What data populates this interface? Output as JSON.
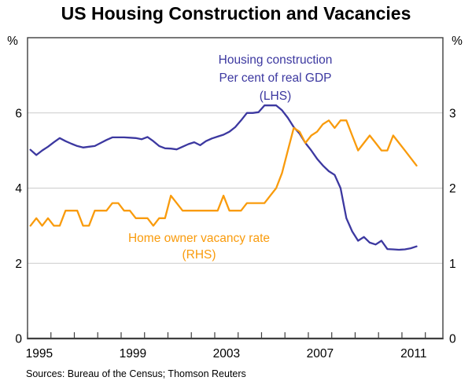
{
  "title": "US Housing Construction and Vacancies",
  "source_note": "Sources: Bureau of the Census; Thomson Reuters",
  "colors": {
    "housing_line": "#3c38a0",
    "vacancy_line": "#f99b0c",
    "gridline": "#cccccc",
    "frame": "#3f3f3f",
    "text": "#000000",
    "background": "#ffffff"
  },
  "annotations": {
    "housing": {
      "lines": [
        "Housing construction",
        "Per cent of real GDP",
        "(LHS)"
      ],
      "color": "#3c38a0"
    },
    "vacancy": {
      "lines": [
        "Home owner vacancy rate",
        "(RHS)"
      ],
      "color": "#f99b0c"
    }
  },
  "chart_data": {
    "type": "line",
    "title": "US Housing Construction and Vacancies",
    "x": {
      "frequency": "quarterly",
      "start": "1995Q1",
      "end": "2011Q3",
      "tick_interval_years": 1,
      "labeled_years": [
        1995,
        1999,
        2003,
        2007,
        2011
      ],
      "axis_span_years": [
        1995,
        2012.75
      ]
    },
    "axes": {
      "left": {
        "unit": "%",
        "min": 0,
        "max": 8,
        "tick_labels": [
          0,
          2,
          4,
          6
        ],
        "gridlines": [
          2,
          4,
          6
        ]
      },
      "right": {
        "unit": "%",
        "min": 0,
        "max": 4,
        "tick_labels": [
          0,
          1,
          2,
          3
        ]
      }
    },
    "grid": "horizontal-only",
    "legend": "inline-annotations",
    "series": [
      {
        "name": "Housing construction — Per cent of real GDP",
        "axis": "LHS",
        "color": "#3c38a0",
        "values": [
          5.02,
          4.88,
          5.0,
          5.1,
          5.22,
          5.33,
          5.25,
          5.18,
          5.12,
          5.08,
          5.1,
          5.12,
          5.2,
          5.28,
          5.35,
          5.35,
          5.35,
          5.34,
          5.33,
          5.3,
          5.36,
          5.25,
          5.12,
          5.06,
          5.05,
          5.03,
          5.1,
          5.17,
          5.22,
          5.14,
          5.25,
          5.32,
          5.37,
          5.42,
          5.5,
          5.62,
          5.8,
          6.0,
          6.0,
          6.02,
          6.2,
          6.2,
          6.2,
          6.07,
          5.87,
          5.62,
          5.45,
          5.2,
          5.0,
          4.78,
          4.6,
          4.45,
          4.35,
          4.0,
          3.2,
          2.85,
          2.6,
          2.7,
          2.55,
          2.5,
          2.6,
          2.38,
          2.37,
          2.36,
          2.37,
          2.4,
          2.45
        ]
      },
      {
        "name": "Home owner vacancy rate",
        "axis": "RHS",
        "color": "#f99b0c",
        "values": [
          1.5,
          1.6,
          1.5,
          1.6,
          1.5,
          1.5,
          1.7,
          1.7,
          1.7,
          1.5,
          1.5,
          1.7,
          1.7,
          1.7,
          1.8,
          1.8,
          1.7,
          1.7,
          1.6,
          1.6,
          1.6,
          1.5,
          1.6,
          1.6,
          1.9,
          1.8,
          1.7,
          1.7,
          1.7,
          1.7,
          1.7,
          1.7,
          1.7,
          1.9,
          1.7,
          1.7,
          1.7,
          1.8,
          1.8,
          1.8,
          1.8,
          1.9,
          2.0,
          2.2,
          2.5,
          2.8,
          2.75,
          2.6,
          2.7,
          2.75,
          2.85,
          2.9,
          2.8,
          2.9,
          2.9,
          2.7,
          2.5,
          2.6,
          2.7,
          2.6,
          2.5,
          2.5,
          2.7,
          2.6,
          2.5,
          2.4,
          2.3
        ]
      }
    ]
  }
}
